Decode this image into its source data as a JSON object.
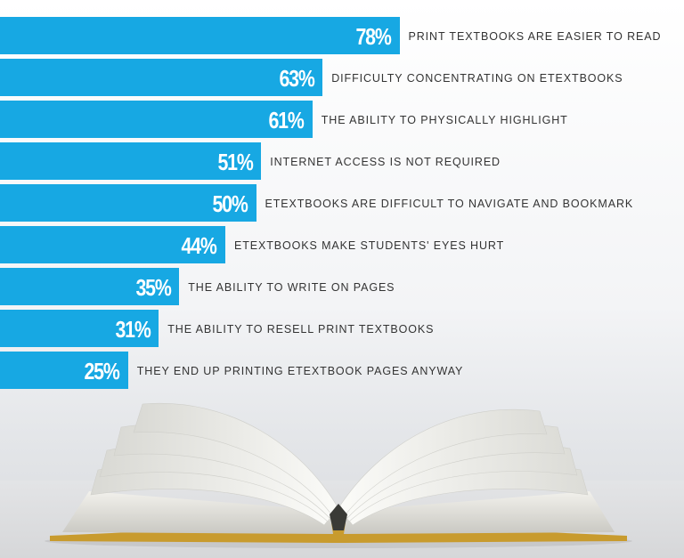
{
  "chart_data": {
    "type": "bar",
    "orientation": "horizontal",
    "categories": [
      "PRINT TEXTBOOKS ARE EASIER TO READ",
      "DIFFICULTY CONCENTRATING ON ETEXTBOOKS",
      "THE ABILITY TO PHYSICALLY HIGHLIGHT",
      "INTERNET ACCESS IS NOT REQUIRED",
      "ETEXTBOOKS ARE DIFFICULT TO NAVIGATE AND BOOKMARK",
      "ETEXTBOOKS MAKE STUDENTS' EYES HURT",
      "THE ABILITY TO WRITE ON PAGES",
      "THE ABILITY TO RESELL PRINT TEXTBOOKS",
      "THEY END UP PRINTING ETEXTBOOK PAGES ANYWAY"
    ],
    "values": [
      78,
      63,
      61,
      51,
      50,
      44,
      35,
      31,
      25
    ],
    "value_labels": [
      "78%",
      "63%",
      "61%",
      "51%",
      "50%",
      "44%",
      "35%",
      "31%",
      "25%"
    ],
    "unit": "%",
    "bar_color": "#17a8e3",
    "title": "",
    "xlabel": "",
    "ylabel": "",
    "grid": false
  },
  "colors": {
    "bar": "#17a8e3",
    "value_text": "#ffffff",
    "label_text": "#333333",
    "background": "#f3f4f6",
    "book_edge": "#c89b2e"
  },
  "illustration": "open-book-icon"
}
